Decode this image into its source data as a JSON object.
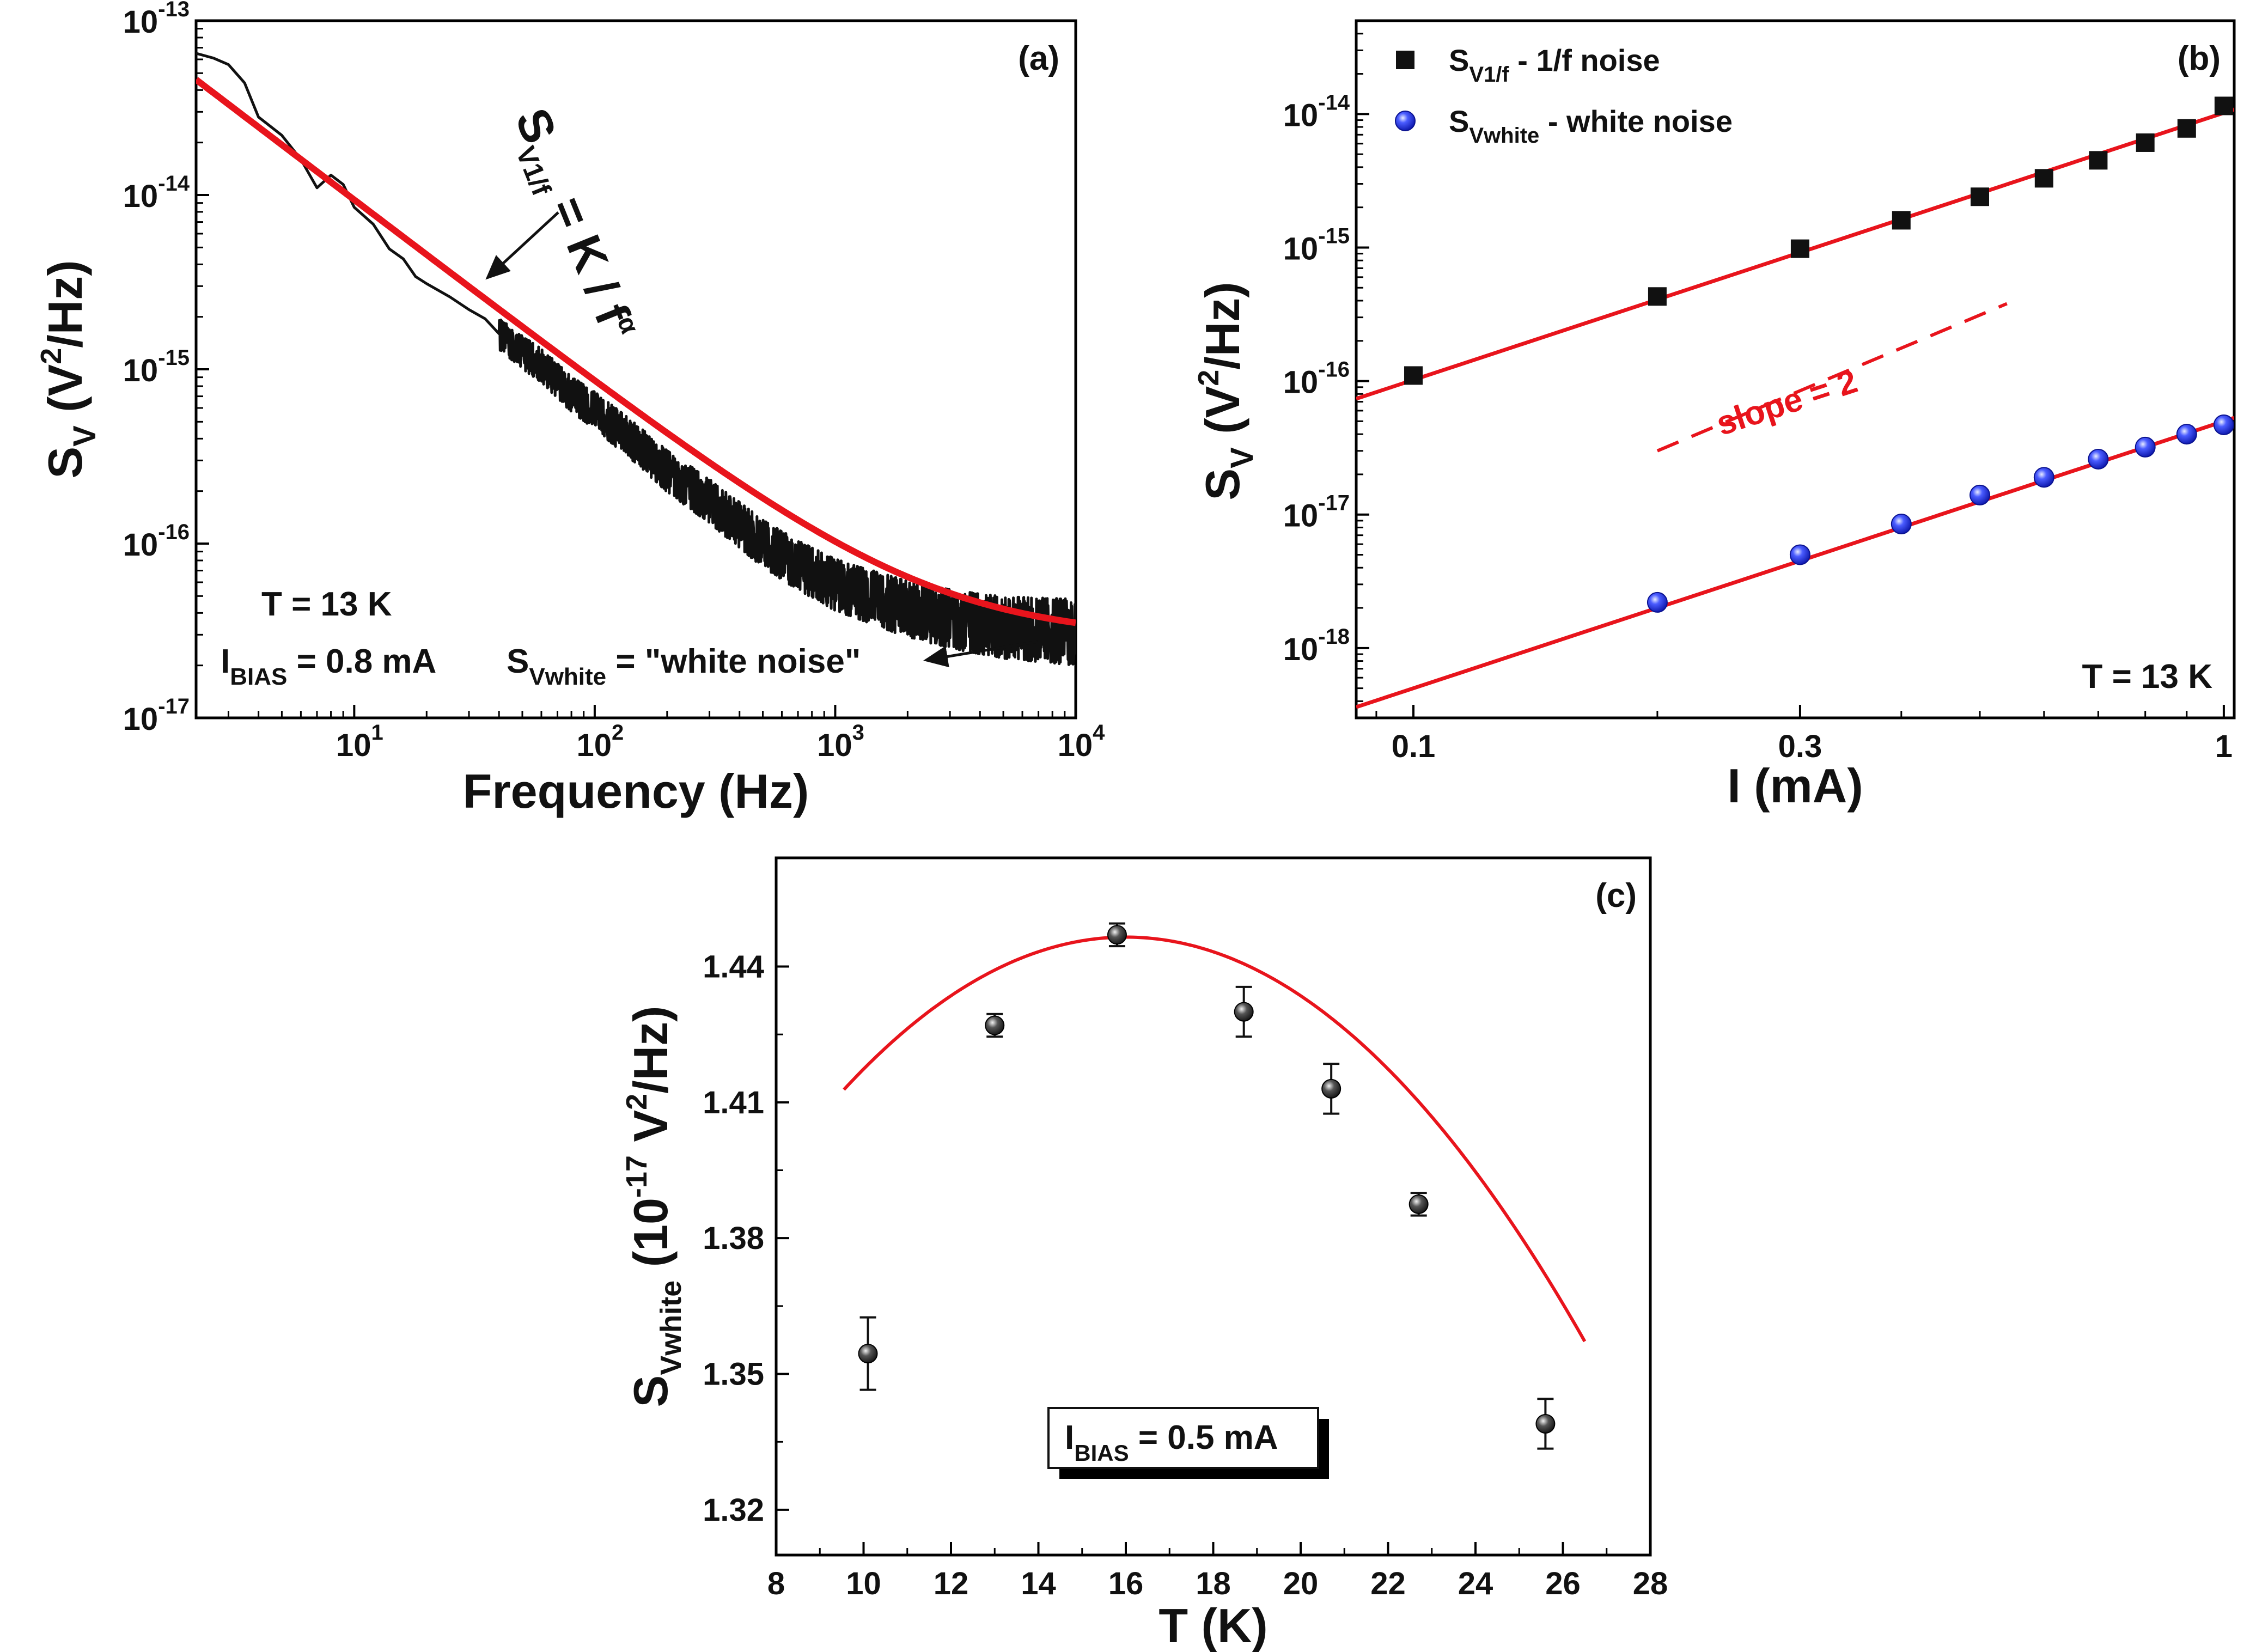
{
  "chart_data": [
    {
      "panel": "a",
      "type": "line",
      "label": "(a)",
      "xlabel": "Frequency (Hz)",
      "ylabel": {
        "main": "S",
        "sub": "V",
        "unit_pre": "(V",
        "unit_sup": "2",
        "unit_post": "/Hz)"
      },
      "xscale": "log",
      "yscale": "log",
      "xlim": [
        2.2,
        10000
      ],
      "ylim": [
        1e-17,
        1e-13
      ],
      "xticks": [
        {
          "value": 10,
          "base": "10",
          "exp": "1"
        },
        {
          "value": 100,
          "base": "10",
          "exp": "2"
        },
        {
          "value": 1000,
          "base": "10",
          "exp": "3"
        },
        {
          "value": 10000,
          "base": "10",
          "exp": "4"
        }
      ],
      "yticks": [
        {
          "value": 1e-17,
          "base": "10",
          "exp": "-17"
        },
        {
          "value": 1e-16,
          "base": "10",
          "exp": "-16"
        },
        {
          "value": 1e-15,
          "base": "10",
          "exp": "-15"
        },
        {
          "value": 1e-14,
          "base": "10",
          "exp": "-14"
        },
        {
          "value": 1e-13,
          "base": "10",
          "exp": "-13"
        }
      ],
      "measured_noise": {
        "f": [
          2.2,
          2.6,
          3.0,
          3.5,
          4.0,
          5.0,
          6.0,
          7.0,
          8.0,
          9.0,
          10.0,
          12.0,
          14.0,
          16.0,
          18.0,
          20.0,
          25.0,
          30.0,
          35.0,
          40.0,
          50.0,
          60.0,
          80.0,
          100.0,
          150.0,
          200.0,
          300.0,
          500.0,
          700.0,
          1000.0,
          1500.0,
          2000.0,
          3000.0,
          5000.0,
          7000.0,
          10000.0
        ],
        "sv": [
          6.5e-14,
          6.1e-14,
          5.6e-14,
          4.4e-14,
          2.8e-14,
          2.2e-14,
          1.6e-14,
          1.1e-14,
          1.3e-14,
          1.15e-14,
          8.5e-15,
          6.8e-15,
          4.9e-15,
          4.3e-15,
          3.4e-15,
          3.1e-15,
          2.6e-15,
          2.2e-15,
          1.95e-15,
          1.6e-15,
          1.25e-15,
          1.05e-15,
          7.2e-16,
          5.8e-16,
          3.7e-16,
          2.6e-16,
          1.75e-16,
          1e-16,
          7.5e-17,
          5.8e-17,
          4.8e-17,
          4.2e-17,
          3.7e-17,
          3.3e-17,
          3.2e-17,
          3.1e-17
        ]
      },
      "fit": {
        "K": 1.05e-13,
        "alpha": 1.05,
        "white": 2.85e-17
      },
      "annotations": {
        "label": "(a)",
        "formula": {
          "S": "S",
          "sub": "V1/f",
          "rest": " = K / f",
          "sup": "α"
        },
        "temperature": "T = 13 K",
        "bias": {
          "pre": "I",
          "sub": "BIAS",
          "post": " = 0.8 mA"
        },
        "white": {
          "pre": "S",
          "sub": "Vwhite",
          "post": " = \"white noise\""
        }
      }
    },
    {
      "panel": "b",
      "type": "scatter",
      "label": "(b)",
      "xlabel": "I (mA)",
      "ylabel": {
        "main": "S",
        "sub": "V",
        "unit_pre": "(V",
        "unit_sup": "2",
        "unit_post": "/Hz)"
      },
      "xscale": "log",
      "yscale": "log",
      "xlim": [
        0.085,
        1.03
      ],
      "ylim": [
        3e-19,
        5e-14
      ],
      "xticks": [
        {
          "value": 0.1,
          "label": "0.1"
        },
        {
          "value": 0.3,
          "label": "0.3"
        },
        {
          "value": 1,
          "label": "1"
        }
      ],
      "yticks": [
        {
          "value": 1e-18,
          "base": "10",
          "exp": "-18"
        },
        {
          "value": 1e-17,
          "base": "10",
          "exp": "-17"
        },
        {
          "value": 1e-16,
          "base": "10",
          "exp": "-16"
        },
        {
          "value": 1e-15,
          "base": "10",
          "exp": "-15"
        },
        {
          "value": 1e-14,
          "base": "10",
          "exp": "-14"
        }
      ],
      "series": [
        {
          "name": "S_V1/f - 1/f noise",
          "legend": {
            "pre": "S",
            "sub": "V1/f",
            "post": " - 1/f noise"
          },
          "marker": "square",
          "x": [
            0.1,
            0.2,
            0.3,
            0.4,
            0.5,
            0.6,
            0.7,
            0.8,
            0.9,
            1.0
          ],
          "y": [
            1.1e-16,
            4.3e-16,
            9.8e-16,
            1.6e-15,
            2.4e-15,
            3.3e-15,
            4.5e-15,
            6.1e-15,
            7.8e-15,
            1.15e-14
          ],
          "fit": {
            "coef": 1.02e-14,
            "slope": 2
          }
        },
        {
          "name": "S_Vwhite - white noise",
          "legend": {
            "pre": "S",
            "sub": "Vwhite",
            "post": " - white noise"
          },
          "marker": "blue-sphere",
          "x": [
            0.2,
            0.3,
            0.4,
            0.5,
            0.6,
            0.7,
            0.8,
            0.9,
            1.0
          ],
          "y": [
            2.2e-18,
            5e-18,
            8.5e-18,
            1.4e-17,
            1.9e-17,
            2.6e-17,
            3.2e-17,
            4e-17,
            4.7e-17
          ],
          "fit": {
            "coef": 5e-17,
            "slope": 2
          }
        }
      ],
      "guide": {
        "label": "slope = 2",
        "x": [
          0.2,
          0.54
        ],
        "y": [
          3e-17,
          3.8e-16
        ]
      },
      "annotations": {
        "label": "(b)",
        "temperature": "T = 13 K"
      }
    },
    {
      "panel": "c",
      "type": "scatter",
      "label": "(c)",
      "xlabel": "T (K)",
      "ylabel": {
        "main": "S",
        "sub": "Vwhite",
        "unit_pre": "(10",
        "unit_sup": "-17",
        "unit_post": " V",
        "unit_sup2": "2",
        "unit_end": "/Hz)"
      },
      "xlim": [
        8,
        28
      ],
      "ylim": [
        1.31,
        1.464
      ],
      "xticks": [
        8,
        10,
        12,
        14,
        16,
        18,
        20,
        22,
        24,
        26,
        28
      ],
      "yticks": [
        "1.32",
        "1.35",
        "1.38",
        "1.41",
        "1.44"
      ],
      "points": {
        "x": [
          10.1,
          13.0,
          15.8,
          18.7,
          20.7,
          22.7,
          25.6
        ],
        "y": [
          1.3545,
          1.427,
          1.447,
          1.43,
          1.413,
          1.3875,
          1.339
        ],
        "err": [
          0.008,
          0.0025,
          0.0025,
          0.0055,
          0.0055,
          0.0025,
          0.0055
        ]
      },
      "fit": {
        "peak_x": 16.0,
        "peak_y": 1.4465,
        "curvature": 0.00081,
        "x_range": [
          9.55,
          26.5
        ]
      },
      "annotations": {
        "label": "(c)",
        "bias": {
          "pre": "I",
          "sub": "BIAS",
          "post": " = 0.5 mA"
        }
      }
    }
  ]
}
